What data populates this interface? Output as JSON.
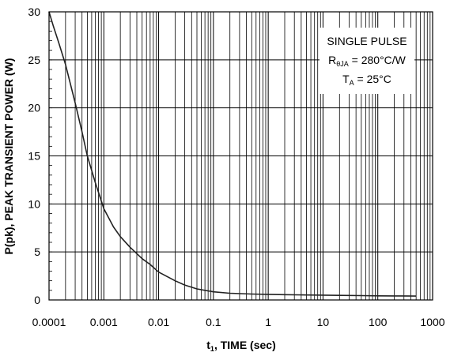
{
  "chart_data": {
    "type": "line",
    "x_scale": "log",
    "xlim": [
      0.0001,
      1000
    ],
    "ylim": [
      0,
      30
    ],
    "grid": true,
    "x_ticks": [
      0.0001,
      0.001,
      0.01,
      0.1,
      1,
      10,
      100,
      1000
    ],
    "x_tick_labels": [
      "0.0001",
      "0.001",
      "0.01",
      "0.1",
      "1",
      "10",
      "100",
      "1000"
    ],
    "y_ticks": [
      0,
      5,
      10,
      15,
      20,
      25,
      30
    ],
    "y_tick_labels": [
      "0",
      "5",
      "10",
      "15",
      "20",
      "25",
      "30"
    ],
    "xlabel": {
      "main": "t",
      "sub": "1",
      "rest": ", TIME (sec)"
    },
    "ylabel": "P(pk), PEAK TRANSIENT POWER (W)",
    "annotation": {
      "line1": "SINGLE PULSE",
      "line2": {
        "main": "R",
        "sub": "θJA",
        "rest": " = 280°C/W"
      },
      "line3": {
        "main": "T",
        "sub": "A",
        "rest": " = 25°C"
      }
    },
    "series": [
      {
        "color": "#222222",
        "x": [
          0.0001,
          0.00012,
          0.00015,
          0.0002,
          0.0003,
          0.0004,
          0.0005,
          0.0007,
          0.001,
          0.0015,
          0.002,
          0.003,
          0.005,
          0.007,
          0.01,
          0.02,
          0.03,
          0.05,
          0.1,
          0.2,
          0.5,
          1,
          2,
          5,
          10,
          20,
          50,
          100,
          200,
          500
        ],
        "y": [
          30,
          28.5,
          26.8,
          24.5,
          20.5,
          17.5,
          15.0,
          12.2,
          9.5,
          7.6,
          6.6,
          5.5,
          4.3,
          3.7,
          2.9,
          2.0,
          1.55,
          1.15,
          0.85,
          0.7,
          0.62,
          0.58,
          0.55,
          0.52,
          0.5,
          0.48,
          0.45,
          0.43,
          0.42,
          0.4
        ]
      }
    ]
  }
}
